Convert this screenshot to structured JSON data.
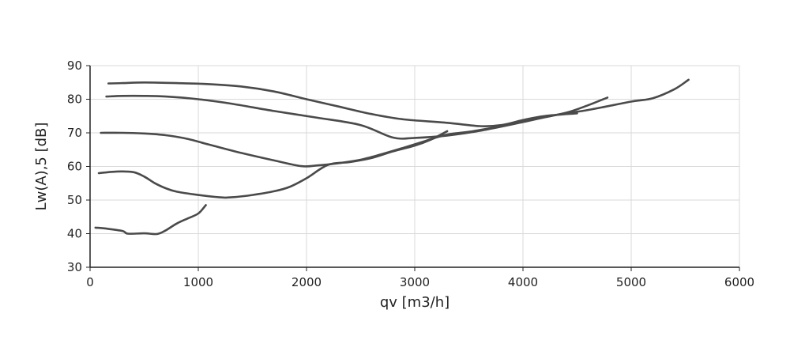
{
  "chart_data": {
    "type": "line",
    "xlabel": "qv [m3/h]",
    "ylabel": "Lw(A),5 [dB]",
    "xlim": [
      0,
      6000
    ],
    "ylim": [
      30,
      90
    ],
    "xticks": [
      0,
      1000,
      2000,
      3000,
      4000,
      5000,
      6000
    ],
    "yticks": [
      30,
      40,
      50,
      60,
      70,
      80,
      90
    ],
    "grid": true,
    "legend": "none",
    "colors": {
      "line": "#4a4a4a",
      "grid": "#d9d9d9",
      "axis": "#222222"
    },
    "series": [
      {
        "points": [
          [
            50,
            41.8
          ],
          [
            150,
            41.5
          ],
          [
            300,
            40.8
          ],
          [
            350,
            40.0
          ],
          [
            500,
            40.1
          ],
          [
            620,
            39.9
          ],
          [
            700,
            41.0
          ],
          [
            800,
            43.0
          ],
          [
            900,
            44.5
          ],
          [
            1000,
            46.0
          ],
          [
            1070,
            48.5
          ]
        ]
      },
      {
        "points": [
          [
            80,
            58.0
          ],
          [
            250,
            58.5
          ],
          [
            400,
            58.3
          ],
          [
            500,
            57.0
          ],
          [
            600,
            55.0
          ],
          [
            700,
            53.5
          ],
          [
            800,
            52.5
          ],
          [
            1000,
            51.5
          ],
          [
            1200,
            50.8
          ],
          [
            1300,
            50.8
          ],
          [
            1500,
            51.5
          ],
          [
            1700,
            52.6
          ],
          [
            1850,
            54.0
          ],
          [
            2000,
            56.5
          ],
          [
            2200,
            60.5
          ],
          [
            2400,
            61.3
          ],
          [
            2600,
            62.5
          ],
          [
            2800,
            64.5
          ],
          [
            3000,
            66.2
          ],
          [
            3150,
            68.0
          ],
          [
            3300,
            70.5
          ]
        ]
      },
      {
        "points": [
          [
            100,
            70.0
          ],
          [
            300,
            70.0
          ],
          [
            500,
            69.8
          ],
          [
            700,
            69.3
          ],
          [
            900,
            68.2
          ],
          [
            1100,
            66.5
          ],
          [
            1400,
            64.0
          ],
          [
            1700,
            61.8
          ],
          [
            1950,
            60.1
          ],
          [
            2100,
            60.3
          ],
          [
            2300,
            61.0
          ],
          [
            2500,
            62.0
          ],
          [
            2700,
            63.7
          ],
          [
            2900,
            65.6
          ],
          [
            3100,
            67.6
          ],
          [
            3300,
            69.5
          ],
          [
            3500,
            70.3
          ],
          [
            3800,
            72.0
          ],
          [
            4100,
            74.0
          ],
          [
            4400,
            76.0
          ],
          [
            4600,
            78.2
          ],
          [
            4780,
            80.5
          ]
        ]
      },
      {
        "points": [
          [
            150,
            80.8
          ],
          [
            300,
            81.0
          ],
          [
            500,
            81.0
          ],
          [
            700,
            80.8
          ],
          [
            1000,
            80.0
          ],
          [
            1300,
            78.7
          ],
          [
            1700,
            76.5
          ],
          [
            2100,
            74.5
          ],
          [
            2500,
            72.3
          ],
          [
            2800,
            68.6
          ],
          [
            3000,
            68.5
          ],
          [
            3300,
            69.2
          ],
          [
            3600,
            70.6
          ],
          [
            4000,
            73.2
          ],
          [
            4300,
            75.3
          ],
          [
            4600,
            76.8
          ],
          [
            5000,
            79.3
          ],
          [
            5200,
            80.3
          ],
          [
            5400,
            83.0
          ],
          [
            5530,
            85.8
          ]
        ]
      },
      {
        "points": [
          [
            170,
            84.7
          ],
          [
            300,
            84.8
          ],
          [
            500,
            85.0
          ],
          [
            800,
            84.8
          ],
          [
            1100,
            84.5
          ],
          [
            1400,
            83.8
          ],
          [
            1700,
            82.3
          ],
          [
            2000,
            80.0
          ],
          [
            2300,
            77.8
          ],
          [
            2600,
            75.6
          ],
          [
            2900,
            74.0
          ],
          [
            3300,
            73.0
          ],
          [
            3600,
            72.0
          ],
          [
            3800,
            72.3
          ],
          [
            4000,
            73.8
          ],
          [
            4200,
            75.0
          ],
          [
            4500,
            75.8
          ]
        ]
      }
    ]
  }
}
